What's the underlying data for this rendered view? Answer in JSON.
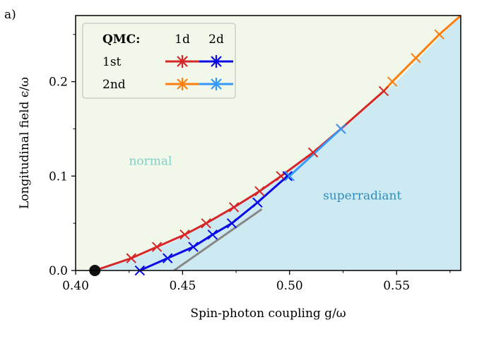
{
  "panel_label": "a)",
  "chart_data": {
    "type": "line",
    "xlabel": "Spin-photon coupling g/ω",
    "ylabel": "Longitudinal field ϵ/ω",
    "xlim": [
      0.4,
      0.58
    ],
    "ylim": [
      0.0,
      0.27
    ],
    "xticks": [
      0.4,
      0.45,
      0.5,
      0.55
    ],
    "xtick_labels": [
      "0.40",
      "0.45",
      "0.50",
      "0.55"
    ],
    "yticks": [
      0.0,
      0.1,
      0.2
    ],
    "ytick_labels": [
      "0.0",
      "0.1",
      "0.2"
    ],
    "regions": {
      "normal": {
        "label": "normal",
        "color": "#f1f8ea",
        "label_color": "#7ed0c8",
        "label_pos": [
          0.435,
          0.112
        ]
      },
      "superradiant": {
        "label": "superradiant",
        "color": "#cde9f1",
        "label_color": "#2e8fbf",
        "label_pos": [
          0.534,
          0.075
        ]
      }
    },
    "boundary": {
      "x": [
        0.409,
        0.43,
        0.45,
        0.47,
        0.49,
        0.5,
        0.525,
        0.55,
        0.58
      ],
      "y": [
        0.0,
        0.015,
        0.035,
        0.062,
        0.09,
        0.105,
        0.15,
        0.2,
        0.27
      ]
    },
    "critical_point": {
      "x": 0.409,
      "y": 0.0,
      "color": "#111111"
    },
    "gray_line": {
      "x": [
        0.446,
        0.487
      ],
      "y": [
        0.0,
        0.065
      ],
      "color": "#888888"
    },
    "series": [
      {
        "name": "1d 1st",
        "color": "#d62728",
        "x": [
          0.409,
          0.426,
          0.438,
          0.451,
          0.461,
          0.474,
          0.486,
          0.496,
          0.511,
          0.524,
          0.544
        ],
        "y": [
          0.0,
          0.013,
          0.025,
          0.038,
          0.05,
          0.067,
          0.084,
          0.1,
          0.125,
          0.15,
          0.19
        ]
      },
      {
        "name": "2d 1st",
        "color": "#0a0ae6",
        "x": [
          0.43,
          0.443,
          0.455,
          0.464,
          0.473,
          0.485,
          0.499
        ],
        "y": [
          0.0,
          0.013,
          0.025,
          0.038,
          0.05,
          0.072,
          0.1
        ]
      },
      {
        "name": "1d 2nd",
        "color": "#ff7f0e",
        "x": [
          0.544,
          0.548,
          0.559,
          0.57,
          0.58
        ],
        "y": [
          0.19,
          0.2,
          0.225,
          0.25,
          0.27
        ]
      },
      {
        "name": "2d 2nd",
        "color": "#3399ff",
        "x": [
          0.499,
          0.5,
          0.524
        ],
        "y": [
          0.1,
          0.1,
          0.15
        ]
      }
    ],
    "legend": {
      "position": "top-left",
      "header": "QMC:",
      "col_labels": [
        "1d",
        "2d"
      ],
      "row_labels": [
        "1st",
        "2nd"
      ],
      "colors": [
        [
          "#d62728",
          "#0a0ae6"
        ],
        [
          "#ff7f0e",
          "#3399ff"
        ]
      ]
    }
  }
}
